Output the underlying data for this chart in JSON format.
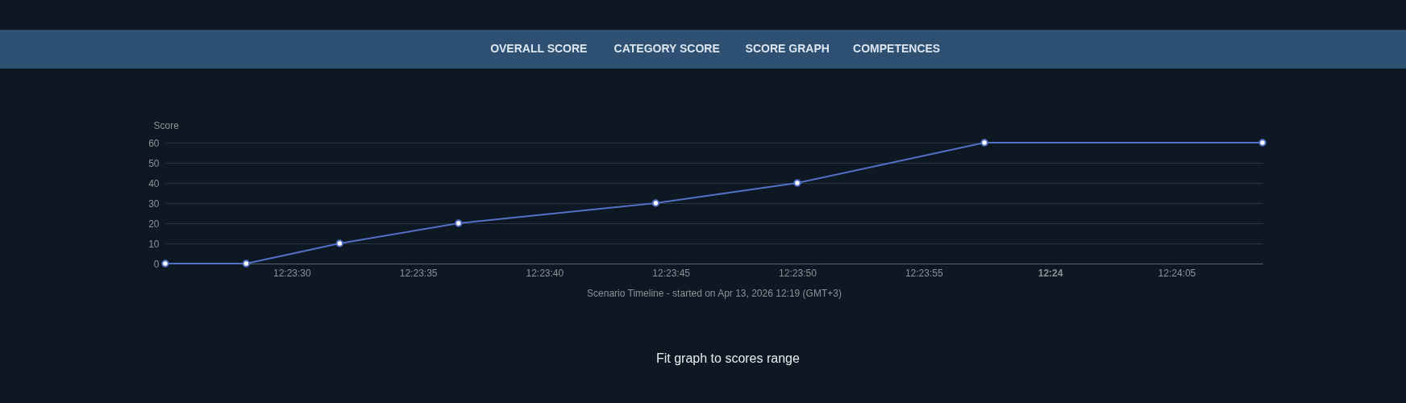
{
  "chart_data": {
    "type": "line",
    "xlabel": "Scenario Timeline - started on Apr 13, 2026 12:19 (GMT+3)",
    "ylabel": "Score",
    "x": [
      12.390278,
      12.391167,
      12.392194,
      12.3935,
      12.395667,
      12.397222,
      12.399278,
      12.402333
    ],
    "series": [
      {
        "color": "#5470c6",
        "values": [
          0,
          0,
          10,
          20,
          30,
          40,
          60,
          60
        ]
      }
    ],
    "xlim": [
      12.390278,
      12.402333
    ],
    "xticks": [
      {
        "value": 12.391667,
        "label": "12:23:30"
      },
      {
        "value": 12.393056,
        "label": "12:23:35"
      },
      {
        "value": 12.394444,
        "label": "12:23:40"
      },
      {
        "value": 12.395833,
        "label": "12:23:45"
      },
      {
        "value": 12.397222,
        "label": "12:23:50"
      },
      {
        "value": 12.398611,
        "label": "12:23:55"
      },
      {
        "value": 12.4,
        "label": "12:24"
      },
      {
        "value": 12.401389,
        "label": "12:24:05"
      }
    ],
    "ylim": [
      0,
      60
    ],
    "yticks": [
      0,
      10,
      20,
      30,
      40,
      50,
      60
    ],
    "grid": "y",
    "legend": false,
    "marker": "circle",
    "line_style": "solid",
    "annotations": [
      "OVERALL SCORE",
      "CATEGORY SCORE",
      "SCORE GRAPH",
      "COMPETENCES",
      "Fit graph to scores range"
    ]
  }
}
